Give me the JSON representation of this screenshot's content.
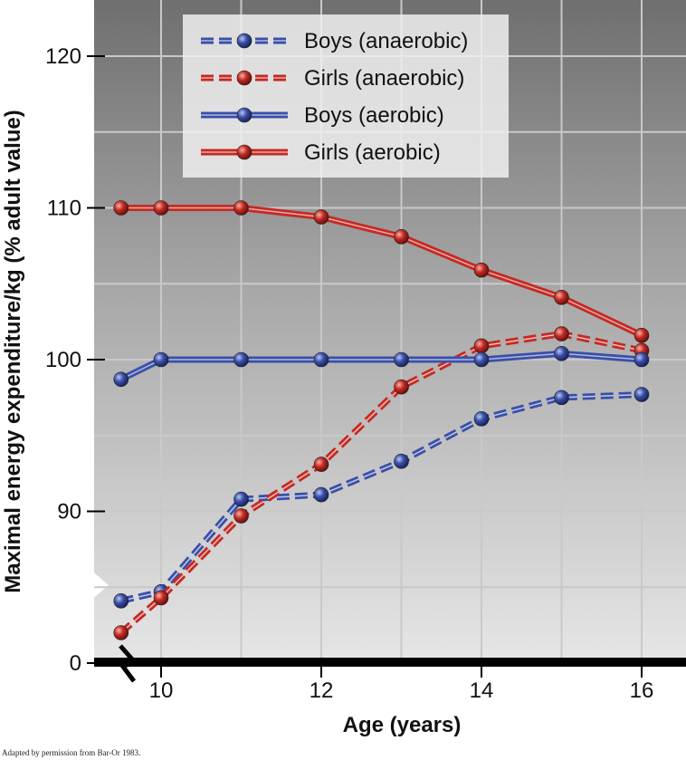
{
  "chart_data": {
    "type": "line",
    "xlabel": "Age (years)",
    "ylabel": "Maximal energy expenditure/kg (% adult value)",
    "x_ticks": [
      10,
      12,
      14,
      16
    ],
    "y_ticks": [
      0,
      90,
      100,
      110,
      120
    ],
    "axis_break": true,
    "xlim": [
      9.1,
      16.4
    ],
    "ylim_display": [
      80,
      124
    ],
    "grid": true,
    "legend_position": "top-left",
    "series": [
      {
        "name": "Boys (anaerobic)",
        "style": "dashed",
        "color": "#3a4fa8",
        "x": [
          9.5,
          10,
          11,
          12,
          13,
          14,
          15,
          16
        ],
        "y": [
          84.1,
          84.7,
          90.8,
          91.1,
          93.3,
          96.1,
          97.5,
          97.7
        ]
      },
      {
        "name": "Girls (anaerobic)",
        "style": "dashed",
        "color": "#c42a24",
        "x": [
          9.5,
          10,
          11,
          12,
          13,
          14,
          15,
          16
        ],
        "y": [
          82.0,
          84.3,
          89.7,
          93.1,
          98.2,
          100.9,
          101.7,
          100.6
        ]
      },
      {
        "name": "Boys (aerobic)",
        "style": "solid",
        "color": "#3a4fa8",
        "x": [
          9.5,
          10,
          11,
          12,
          13,
          14,
          15,
          16
        ],
        "y": [
          98.7,
          100.0,
          100.0,
          100.0,
          100.0,
          100.0,
          100.4,
          100.0
        ]
      },
      {
        "name": "Girls (aerobic)",
        "style": "solid",
        "color": "#c42a24",
        "x": [
          9.5,
          10,
          11,
          12,
          13,
          14,
          15,
          16
        ],
        "y": [
          110.0,
          110.0,
          110.0,
          109.4,
          108.1,
          105.9,
          104.1,
          101.6
        ]
      }
    ]
  },
  "credit": "Adapted by permission from Bar-Or 1983."
}
